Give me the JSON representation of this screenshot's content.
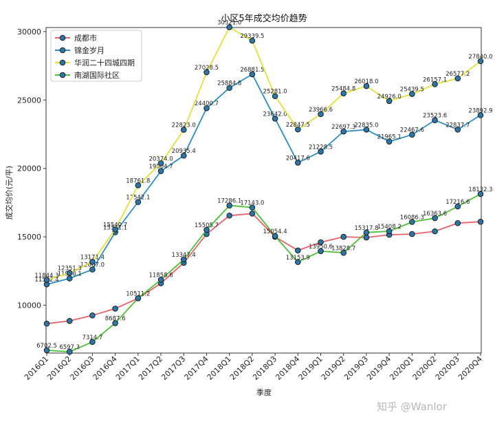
{
  "chart_data": {
    "type": "line",
    "title": "小区5年成交均价趋势",
    "xlabel": "季度",
    "ylabel": "成交均价(元/平)",
    "ylim": [
      6500,
      30300
    ],
    "yticks": [
      10000,
      15000,
      20000,
      25000,
      30000
    ],
    "categories": [
      "2016Q1",
      "2016Q2",
      "2016Q3",
      "2016Q4",
      "2017Q1",
      "2017Q2",
      "2017Q3",
      "2017Q4",
      "2018Q1",
      "2018Q2",
      "2018Q3",
      "2018Q4",
      "2019Q1",
      "2019Q2",
      "2019Q3",
      "2019Q4",
      "2020Q1",
      "2020Q2",
      "2020Q3",
      "2020Q4"
    ],
    "legend_position": "top-left",
    "series": [
      {
        "name": "成都市",
        "color": "#e8606a",
        "show_labels": false,
        "values": [
          8650,
          8850,
          9250,
          9750,
          10500,
          11600,
          13100,
          15200,
          16550,
          16700,
          15000,
          14000,
          14600,
          15000,
          14950,
          15150,
          15200,
          15400,
          16000,
          16100
        ]
      },
      {
        "name": "锦金岁月",
        "color": "#2a8fc0",
        "show_labels": true,
        "values": [
          11522.4,
          11958.1,
          12607.0,
          15331.1,
          17542.1,
          19804.7,
          20935.4,
          24400.7,
          25884.8,
          26881.5,
          23642.0,
          20417.6,
          21228.5,
          22697.3,
          22835.0,
          21965.1,
          22467.6,
          23523.6,
          22837.7,
          23892.9
        ]
      },
      {
        "name": "华润二十四城四期",
        "color": "#e2e03a",
        "show_labels": true,
        "values": [
          11844.3,
          12351.3,
          13171.4,
          15540.7,
          18761.8,
          20374.0,
          22823.0,
          27028.5,
          30321.0,
          29339.5,
          25281.0,
          22847.5,
          23966.6,
          25484.8,
          26018.0,
          24926.0,
          25439.5,
          26157.1,
          26577.2,
          27840.0
        ]
      },
      {
        "name": "南湖国际社区",
        "color": "#4cc035",
        "show_labels": true,
        "values": [
          6702.5,
          6597.3,
          7314.7,
          8687.6,
          10511.2,
          11858.6,
          13347.4,
          15505.7,
          17286.1,
          17143.0,
          15054.4,
          13153.9,
          13950.6,
          13828.7,
          15317.8,
          15408.2,
          16086.3,
          16363.6,
          17216.6,
          18132.3
        ]
      }
    ]
  },
  "watermark": "知乎 @Wanlor"
}
